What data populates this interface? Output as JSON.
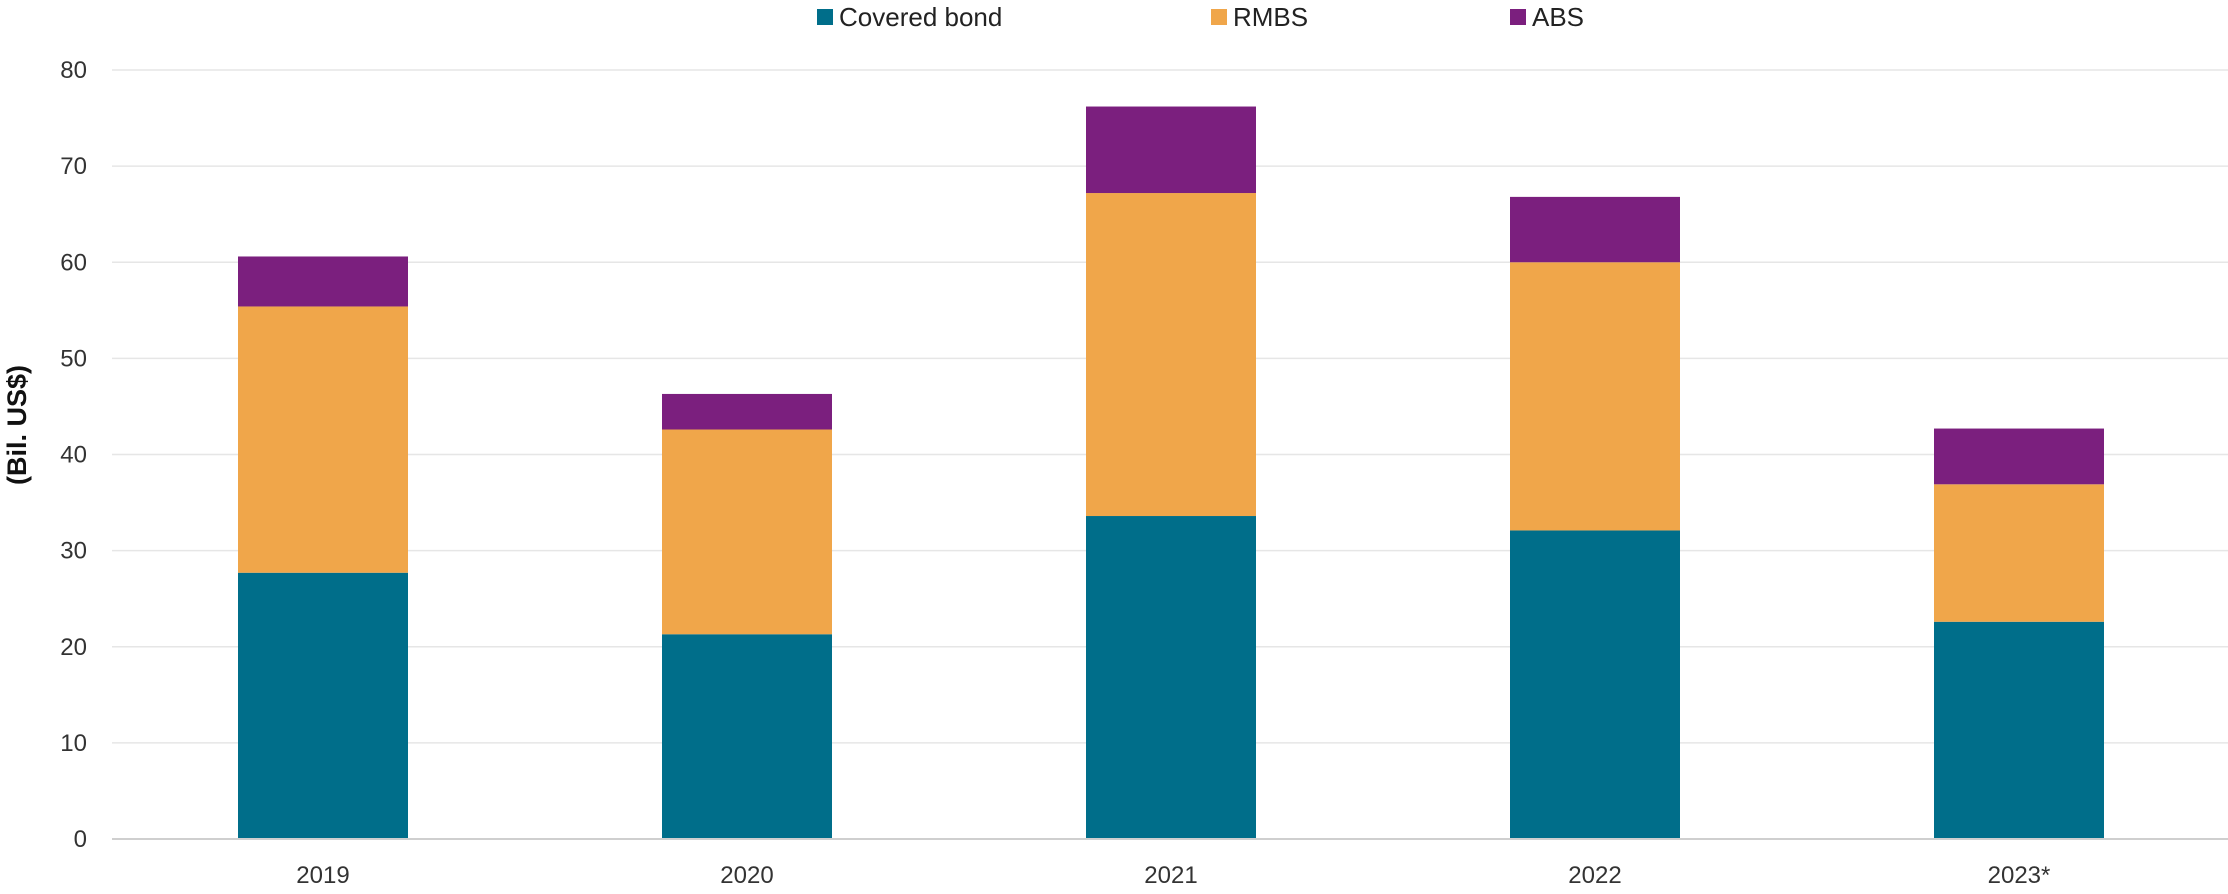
{
  "chart_data": {
    "type": "bar",
    "stacked": true,
    "categories": [
      "2019",
      "2020",
      "2021",
      "2022",
      "2023*"
    ],
    "series": [
      {
        "name": "Covered bond",
        "color": "#006e8a",
        "values": [
          27.7,
          21.3,
          33.6,
          32.1,
          22.6
        ]
      },
      {
        "name": "RMBS",
        "color": "#f0a64a",
        "values": [
          27.7,
          21.3,
          33.6,
          27.9,
          14.3
        ]
      },
      {
        "name": "ABS",
        "color": "#7b1f7e",
        "values": [
          5.2,
          3.7,
          9.0,
          6.8,
          5.8
        ]
      }
    ],
    "title": "",
    "xlabel": "",
    "ylabel": "(Bil. US$)",
    "ylim": [
      0,
      80
    ],
    "yticks": [
      "0",
      "10",
      "20",
      "30",
      "40",
      "50",
      "60",
      "70",
      "80"
    ],
    "grid": true,
    "legend_position": "top-center"
  }
}
